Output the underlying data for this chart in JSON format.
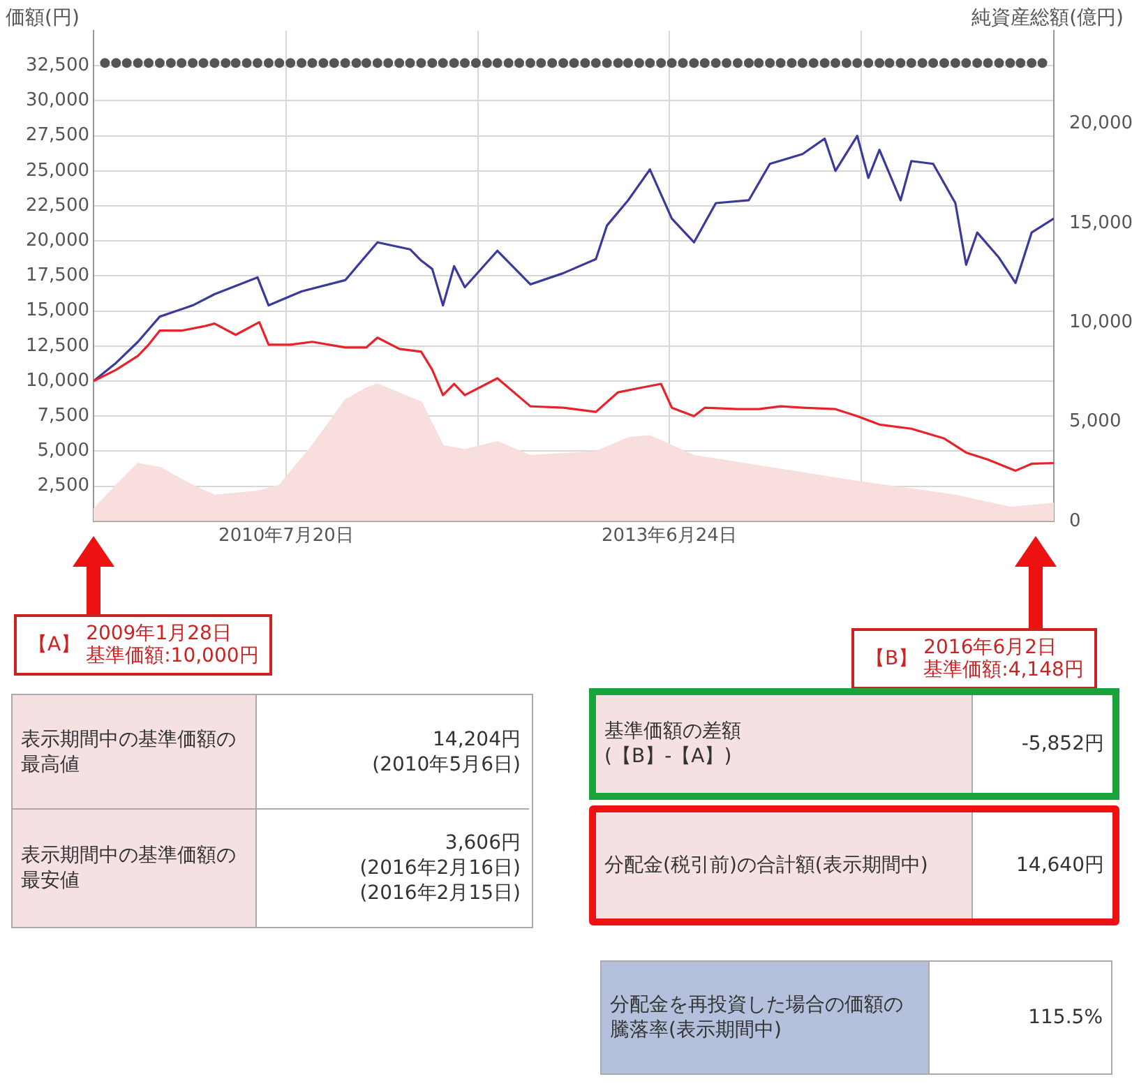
{
  "chart_data": {
    "type": "line",
    "ylabel": "価額(円)",
    "y2label": "純資産総額(億円)",
    "xlim": [
      "2009-01-28",
      "2016-06-02"
    ],
    "xticks": [
      {
        "value": "2010-07-20",
        "label": "2010年7月20日"
      },
      {
        "value": "2012-01-06",
        "label": null
      },
      {
        "value": "2013-06-24",
        "label": "2013年6月24日"
      },
      {
        "value": "2014-12-13",
        "label": null
      }
    ],
    "ylim": [
      0,
      35000
    ],
    "yticks": [
      {
        "value": 2500,
        "label": "2,500"
      },
      {
        "value": 5000,
        "label": "5,000"
      },
      {
        "value": 7500,
        "label": "7,500"
      },
      {
        "value": 10000,
        "label": "10,000"
      },
      {
        "value": 12500,
        "label": "12,500"
      },
      {
        "value": 15000,
        "label": "15,000"
      },
      {
        "value": 17500,
        "label": "17,500"
      },
      {
        "value": 20000,
        "label": "20,000"
      },
      {
        "value": 22500,
        "label": "22,500"
      },
      {
        "value": 25000,
        "label": "25,000"
      },
      {
        "value": 27500,
        "label": "27,500"
      },
      {
        "value": 30000,
        "label": "30,000"
      },
      {
        "value": 32500,
        "label": "32,500"
      }
    ],
    "y2lim": [
      0,
      24700
    ],
    "y2ticks": [
      0,
      {
        "value": 5000,
        "label": "5,000"
      },
      {
        "value": 10000,
        "label": "10,000"
      },
      {
        "value": 15000,
        "label": "15,000"
      },
      {
        "value": 20000,
        "label": "20,000"
      }
    ],
    "grid": true,
    "series": [
      {
        "type": "area",
        "axis": "y2",
        "color": "#f9dede",
        "x": [
          "2009-01-28",
          "2009-04",
          "2009-06",
          "2009-08",
          "2009-11",
          "2010-01",
          "2010-05",
          "2010-07",
          "2010-10",
          "2011-01",
          "2011-03",
          "2011-04",
          "2011-08",
          "2011-10",
          "2011-12",
          "2012-03",
          "2012-06",
          "2012-12",
          "2013-03",
          "2013-05",
          "2013-07",
          "2013-09",
          "2014-04",
          "2014-12",
          "2015-09",
          "2016-02",
          "2016-06-02"
        ],
        "values": [
          600,
          1800,
          2900,
          2700,
          1800,
          1300,
          1500,
          1800,
          3800,
          6100,
          6700,
          6900,
          6000,
          3800,
          3600,
          4000,
          3300,
          3500,
          4200,
          4300,
          3800,
          3300,
          2700,
          2000,
          1300,
          700,
          900
        ]
      },
      {
        "type": "line",
        "color": "#3a3a9a",
        "x": [
          "2009-01-28",
          "2009-04",
          "2009-06",
          "2009-08",
          "2009-11",
          "2010-01",
          "2010-05",
          "2010-06",
          "2010-09",
          "2011-01",
          "2011-04",
          "2011-07",
          "2011-08",
          "2011-09",
          "2011-10",
          "2011-11",
          "2011-12",
          "2012-03",
          "2012-06",
          "2012-09",
          "2012-12",
          "2013-01",
          "2013-03",
          "2013-05",
          "2013-07",
          "2013-09",
          "2013-11",
          "2014-02",
          "2014-04",
          "2014-07",
          "2014-09",
          "2014-10",
          "2014-12",
          "2015-01",
          "2015-02",
          "2015-04",
          "2015-05",
          "2015-07",
          "2015-09",
          "2015-10",
          "2015-11",
          "2016-01",
          "2016-02-16",
          "2016-04",
          "2016-06-02"
        ],
        "values": [
          10000,
          11300,
          12800,
          14600,
          15400,
          16200,
          17400,
          15400,
          16400,
          17200,
          19900,
          19400,
          18600,
          18000,
          15400,
          18200,
          16700,
          19300,
          16900,
          17700,
          18700,
          21100,
          22900,
          25100,
          21600,
          19900,
          22700,
          22900,
          25500,
          26200,
          27300,
          25000,
          27500,
          24500,
          26500,
          22900,
          25700,
          25500,
          22700,
          18300,
          20600,
          18800,
          17000,
          20600,
          21600
        ]
      },
      {
        "type": "line",
        "color": "#e8222a",
        "x": [
          "2009-01-28",
          "2009-04",
          "2009-06",
          "2009-07",
          "2009-08",
          "2009-10",
          "2009-12",
          "2010-01",
          "2010-03",
          "2010-05-06",
          "2010-06",
          "2010-08",
          "2010-10",
          "2011-01",
          "2011-03",
          "2011-04",
          "2011-06",
          "2011-08",
          "2011-09",
          "2011-10",
          "2011-11",
          "2011-12",
          "2012-03",
          "2012-06",
          "2012-09",
          "2012-12",
          "2013-02",
          "2013-04",
          "2013-06",
          "2013-07",
          "2013-09",
          "2013-10",
          "2014-01",
          "2014-03",
          "2014-05",
          "2014-07",
          "2014-10",
          "2014-12",
          "2015-02",
          "2015-05",
          "2015-08",
          "2015-10",
          "2015-12",
          "2016-02-16",
          "2016-04",
          "2016-06-02"
        ],
        "values": [
          10000,
          10800,
          11800,
          12600,
          13600,
          13600,
          13900,
          14100,
          13300,
          14204,
          12600,
          12600,
          12800,
          12400,
          12400,
          13100,
          12300,
          12100,
          10800,
          9000,
          9800,
          9000,
          10200,
          8200,
          8100,
          7800,
          9200,
          9500,
          9800,
          8100,
          7500,
          8100,
          8000,
          8000,
          8200,
          8100,
          8000,
          7500,
          6900,
          6600,
          5900,
          4900,
          4400,
          3606,
          4100,
          4148
        ]
      },
      {
        "type": "scatter",
        "color": "#555555",
        "x": [
          "2009-03",
          "2009-04",
          "2009-05",
          "2009-06",
          "2009-07",
          "2009-08",
          "2009-09",
          "2009-10",
          "2009-11",
          "2009-12",
          "2010-01",
          "2010-02",
          "2010-03",
          "2010-04",
          "2010-05",
          "2010-06",
          "2010-07",
          "2010-08",
          "2010-09",
          "2010-10",
          "2010-11",
          "2010-12",
          "2011-01",
          "2011-02",
          "2011-03",
          "2011-04",
          "2011-05",
          "2011-06",
          "2011-07",
          "2011-08",
          "2011-09",
          "2011-10",
          "2011-11",
          "2011-12",
          "2012-01",
          "2012-02",
          "2012-03",
          "2012-04",
          "2012-05",
          "2012-06",
          "2012-07",
          "2012-08",
          "2012-09",
          "2012-10",
          "2012-11",
          "2012-12",
          "2013-01",
          "2013-02",
          "2013-03",
          "2013-04",
          "2013-05",
          "2013-06",
          "2013-07",
          "2013-08",
          "2013-09",
          "2013-10",
          "2013-11",
          "2013-12",
          "2014-01",
          "2014-02",
          "2014-03",
          "2014-04",
          "2014-05",
          "2014-06",
          "2014-07",
          "2014-08",
          "2014-09",
          "2014-10",
          "2014-11",
          "2014-12",
          "2015-01",
          "2015-02",
          "2015-03",
          "2015-04",
          "2015-05",
          "2015-06",
          "2015-07",
          "2015-08",
          "2015-09",
          "2015-10",
          "2015-11",
          "2015-12",
          "2016-01",
          "2016-02",
          "2016-03",
          "2016-04",
          "2016-05"
        ],
        "values": [
          32700,
          32700,
          32700,
          32700,
          32700,
          32700,
          32700,
          32700,
          32700,
          32700,
          32700,
          32700,
          32700,
          32700,
          32700,
          32700,
          32700,
          32700,
          32700,
          32700,
          32700,
          32700,
          32700,
          32700,
          32700,
          32700,
          32700,
          32700,
          32700,
          32700,
          32700,
          32700,
          32700,
          32700,
          32700,
          32700,
          32700,
          32700,
          32700,
          32700,
          32700,
          32700,
          32700,
          32700,
          32700,
          32700,
          32700,
          32700,
          32700,
          32700,
          32700,
          32700,
          32700,
          32700,
          32700,
          32700,
          32700,
          32700,
          32700,
          32700,
          32700,
          32700,
          32700,
          32700,
          32700,
          32700,
          32700,
          32700,
          32700,
          32700,
          32700,
          32700,
          32700,
          32700,
          32700,
          32700,
          32700,
          32700,
          32700,
          32700,
          32700,
          32700,
          32700,
          32700,
          32700,
          32700,
          32700
        ]
      }
    ],
    "annotations": [
      "【A】",
      "2009年1月28日",
      "基準価額:10,000円",
      "【B】",
      "2016年6月2日",
      "基準価額:4,148円",
      "表示期間中の基準価額の最高値",
      "14,204円\n(2010年5月6日)",
      "表示期間中の基準価額の最安値",
      "3,606円\n(2016年2月16日)\n(2016年2月15日)",
      "基準価額の差額\n(【B】-【A】)",
      "-5,852円",
      "分配金(税引前)の合計額(表示期間中)",
      "14,640円",
      "分配金を再投資した場合の価額の騰落率(表示期間中)",
      "115.5%"
    ]
  }
}
